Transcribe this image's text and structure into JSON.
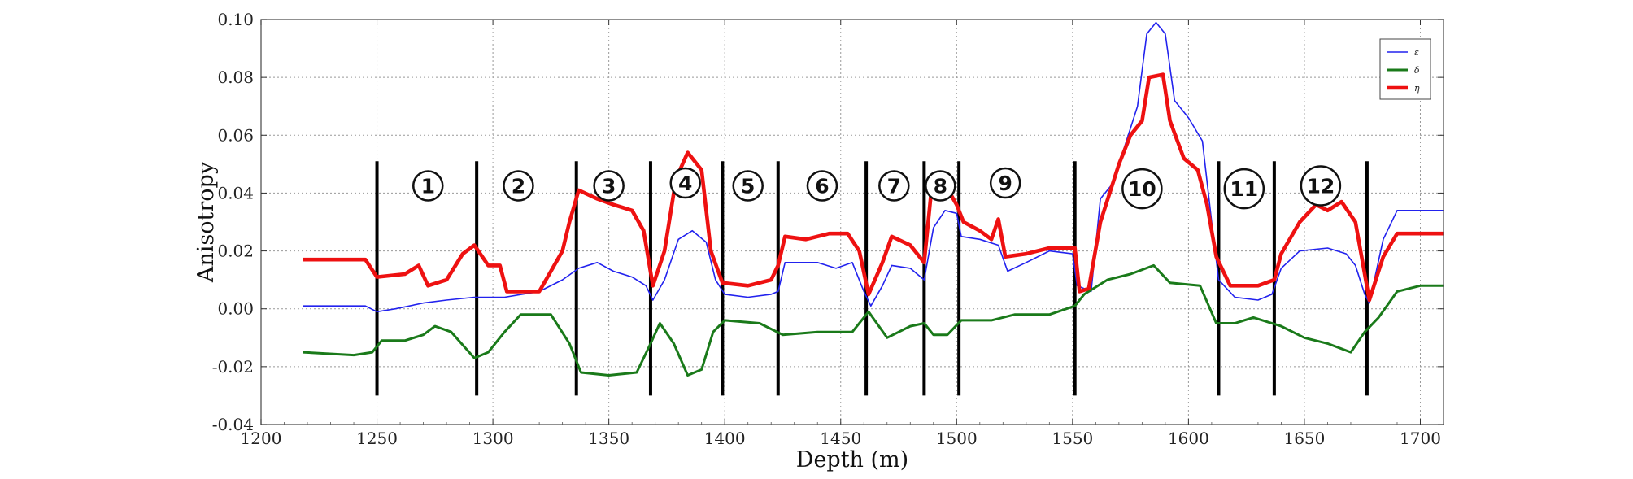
{
  "chart_data": {
    "type": "line",
    "xlabel": "Depth (m)",
    "ylabel": "Anisotropy",
    "xlim": [
      1200,
      1710
    ],
    "ylim": [
      -0.04,
      0.1
    ],
    "xticks": [
      1200,
      1250,
      1300,
      1350,
      1400,
      1450,
      1500,
      1550,
      1600,
      1650,
      1700
    ],
    "yticks": [
      -0.04,
      -0.02,
      0.0,
      0.02,
      0.04,
      0.06,
      0.08,
      0.1
    ],
    "tick_labels_x": [
      "1200",
      "1250",
      "1300",
      "1350",
      "1400",
      "1450",
      "1500",
      "1550",
      "1600",
      "1650",
      "1700"
    ],
    "tick_labels_y": [
      "-0.04",
      "-0.02",
      "0.00",
      "0.02",
      "0.04",
      "0.06",
      "0.08",
      "0.10"
    ],
    "grid": true,
    "legend_position": "top-right",
    "series": [
      {
        "name": "ε",
        "color": "#2222ee",
        "points": [
          [
            1218,
            0.001
          ],
          [
            1245,
            0.001
          ],
          [
            1250,
            -0.001
          ],
          [
            1258,
            0.0
          ],
          [
            1270,
            0.002
          ],
          [
            1280,
            0.003
          ],
          [
            1292,
            0.004
          ],
          [
            1305,
            0.004
          ],
          [
            1320,
            0.006
          ],
          [
            1330,
            0.01
          ],
          [
            1337,
            0.014
          ],
          [
            1345,
            0.016
          ],
          [
            1352,
            0.013
          ],
          [
            1360,
            0.011
          ],
          [
            1366,
            0.008
          ],
          [
            1369,
            0.003
          ],
          [
            1374,
            0.01
          ],
          [
            1380,
            0.024
          ],
          [
            1386,
            0.027
          ],
          [
            1392,
            0.023
          ],
          [
            1396,
            0.01
          ],
          [
            1400,
            0.005
          ],
          [
            1410,
            0.004
          ],
          [
            1420,
            0.005
          ],
          [
            1423,
            0.006
          ],
          [
            1426,
            0.016
          ],
          [
            1440,
            0.016
          ],
          [
            1448,
            0.014
          ],
          [
            1455,
            0.016
          ],
          [
            1460,
            0.006
          ],
          [
            1463,
            0.001
          ],
          [
            1468,
            0.008
          ],
          [
            1472,
            0.015
          ],
          [
            1480,
            0.014
          ],
          [
            1486,
            0.01
          ],
          [
            1490,
            0.028
          ],
          [
            1495,
            0.034
          ],
          [
            1500,
            0.033
          ],
          [
            1502,
            0.025
          ],
          [
            1510,
            0.024
          ],
          [
            1518,
            0.022
          ],
          [
            1522,
            0.013
          ],
          [
            1530,
            0.016
          ],
          [
            1540,
            0.02
          ],
          [
            1550,
            0.019
          ],
          [
            1552,
            0.008
          ],
          [
            1558,
            0.006
          ],
          [
            1562,
            0.038
          ],
          [
            1568,
            0.044
          ],
          [
            1572,
            0.055
          ],
          [
            1578,
            0.07
          ],
          [
            1582,
            0.095
          ],
          [
            1586,
            0.099
          ],
          [
            1590,
            0.095
          ],
          [
            1594,
            0.072
          ],
          [
            1600,
            0.066
          ],
          [
            1606,
            0.058
          ],
          [
            1610,
            0.03
          ],
          [
            1613,
            0.01
          ],
          [
            1620,
            0.004
          ],
          [
            1630,
            0.003
          ],
          [
            1636,
            0.005
          ],
          [
            1640,
            0.014
          ],
          [
            1648,
            0.02
          ],
          [
            1660,
            0.021
          ],
          [
            1668,
            0.019
          ],
          [
            1672,
            0.015
          ],
          [
            1676,
            0.005
          ],
          [
            1678,
            0.002
          ],
          [
            1684,
            0.024
          ],
          [
            1690,
            0.034
          ],
          [
            1710,
            0.034
          ]
        ]
      },
      {
        "name": "δ",
        "color": "#1a7a1a",
        "points": [
          [
            1218,
            -0.015
          ],
          [
            1240,
            -0.016
          ],
          [
            1248,
            -0.015
          ],
          [
            1252,
            -0.011
          ],
          [
            1262,
            -0.011
          ],
          [
            1270,
            -0.009
          ],
          [
            1275,
            -0.006
          ],
          [
            1282,
            -0.008
          ],
          [
            1292,
            -0.017
          ],
          [
            1298,
            -0.015
          ],
          [
            1305,
            -0.008
          ],
          [
            1312,
            -0.002
          ],
          [
            1325,
            -0.002
          ],
          [
            1333,
            -0.012
          ],
          [
            1338,
            -0.022
          ],
          [
            1350,
            -0.023
          ],
          [
            1362,
            -0.022
          ],
          [
            1368,
            -0.012
          ],
          [
            1372,
            -0.005
          ],
          [
            1378,
            -0.012
          ],
          [
            1384,
            -0.023
          ],
          [
            1390,
            -0.021
          ],
          [
            1395,
            -0.008
          ],
          [
            1400,
            -0.004
          ],
          [
            1415,
            -0.005
          ],
          [
            1425,
            -0.009
          ],
          [
            1440,
            -0.008
          ],
          [
            1455,
            -0.008
          ],
          [
            1462,
            -0.001
          ],
          [
            1470,
            -0.01
          ],
          [
            1480,
            -0.006
          ],
          [
            1486,
            -0.005
          ],
          [
            1490,
            -0.009
          ],
          [
            1496,
            -0.009
          ],
          [
            1502,
            -0.004
          ],
          [
            1515,
            -0.004
          ],
          [
            1525,
            -0.002
          ],
          [
            1540,
            -0.002
          ],
          [
            1551,
            0.001
          ],
          [
            1555,
            0.005
          ],
          [
            1565,
            0.01
          ],
          [
            1575,
            0.012
          ],
          [
            1585,
            0.015
          ],
          [
            1592,
            0.009
          ],
          [
            1605,
            0.008
          ],
          [
            1612,
            -0.005
          ],
          [
            1620,
            -0.005
          ],
          [
            1628,
            -0.003
          ],
          [
            1640,
            -0.006
          ],
          [
            1650,
            -0.01
          ],
          [
            1660,
            -0.012
          ],
          [
            1670,
            -0.015
          ],
          [
            1676,
            -0.008
          ],
          [
            1682,
            -0.003
          ],
          [
            1690,
            0.006
          ],
          [
            1700,
            0.008
          ],
          [
            1710,
            0.008
          ]
        ]
      },
      {
        "name": "η",
        "color": "#ee1111",
        "points": [
          [
            1218,
            0.017
          ],
          [
            1245,
            0.017
          ],
          [
            1250,
            0.011
          ],
          [
            1262,
            0.012
          ],
          [
            1268,
            0.015
          ],
          [
            1272,
            0.008
          ],
          [
            1280,
            0.01
          ],
          [
            1287,
            0.019
          ],
          [
            1292,
            0.022
          ],
          [
            1298,
            0.015
          ],
          [
            1303,
            0.015
          ],
          [
            1306,
            0.006
          ],
          [
            1320,
            0.006
          ],
          [
            1325,
            0.013
          ],
          [
            1330,
            0.02
          ],
          [
            1333,
            0.03
          ],
          [
            1337,
            0.041
          ],
          [
            1345,
            0.038
          ],
          [
            1352,
            0.036
          ],
          [
            1360,
            0.034
          ],
          [
            1365,
            0.027
          ],
          [
            1369,
            0.008
          ],
          [
            1374,
            0.02
          ],
          [
            1379,
            0.045
          ],
          [
            1384,
            0.054
          ],
          [
            1390,
            0.048
          ],
          [
            1394,
            0.02
          ],
          [
            1399,
            0.009
          ],
          [
            1410,
            0.008
          ],
          [
            1420,
            0.01
          ],
          [
            1423,
            0.015
          ],
          [
            1426,
            0.025
          ],
          [
            1435,
            0.024
          ],
          [
            1445,
            0.026
          ],
          [
            1453,
            0.026
          ],
          [
            1458,
            0.02
          ],
          [
            1462,
            0.005
          ],
          [
            1468,
            0.016
          ],
          [
            1472,
            0.025
          ],
          [
            1480,
            0.022
          ],
          [
            1486,
            0.016
          ],
          [
            1489,
            0.04
          ],
          [
            1495,
            0.043
          ],
          [
            1500,
            0.036
          ],
          [
            1503,
            0.03
          ],
          [
            1510,
            0.027
          ],
          [
            1515,
            0.024
          ],
          [
            1518,
            0.031
          ],
          [
            1521,
            0.018
          ],
          [
            1530,
            0.019
          ],
          [
            1540,
            0.021
          ],
          [
            1551,
            0.021
          ],
          [
            1553,
            0.006
          ],
          [
            1557,
            0.007
          ],
          [
            1562,
            0.03
          ],
          [
            1566,
            0.04
          ],
          [
            1570,
            0.05
          ],
          [
            1575,
            0.06
          ],
          [
            1580,
            0.065
          ],
          [
            1583,
            0.08
          ],
          [
            1589,
            0.081
          ],
          [
            1592,
            0.065
          ],
          [
            1598,
            0.052
          ],
          [
            1604,
            0.048
          ],
          [
            1608,
            0.036
          ],
          [
            1612,
            0.018
          ],
          [
            1618,
            0.008
          ],
          [
            1630,
            0.008
          ],
          [
            1637,
            0.01
          ],
          [
            1640,
            0.019
          ],
          [
            1648,
            0.03
          ],
          [
            1655,
            0.036
          ],
          [
            1660,
            0.034
          ],
          [
            1666,
            0.037
          ],
          [
            1672,
            0.03
          ],
          [
            1676,
            0.012
          ],
          [
            1678,
            0.003
          ],
          [
            1684,
            0.018
          ],
          [
            1690,
            0.026
          ],
          [
            1710,
            0.026
          ]
        ]
      }
    ],
    "zones": {
      "boundaries": [
        1250,
        1293,
        1336,
        1368,
        1399,
        1423,
        1461,
        1486,
        1501,
        1551,
        1613,
        1637,
        1677
      ],
      "boundary_range": [
        -0.03,
        0.051
      ],
      "labels": [
        {
          "text": "1",
          "x": 1272,
          "y": 0.0425,
          "size": "small"
        },
        {
          "text": "2",
          "x": 1311,
          "y": 0.0425,
          "size": "small"
        },
        {
          "text": "3",
          "x": 1350,
          "y": 0.0425,
          "size": "small"
        },
        {
          "text": "4",
          "x": 1383,
          "y": 0.0435,
          "size": "small"
        },
        {
          "text": "5",
          "x": 1410,
          "y": 0.0425,
          "size": "small"
        },
        {
          "text": "6",
          "x": 1442,
          "y": 0.0425,
          "size": "small"
        },
        {
          "text": "7",
          "x": 1473,
          "y": 0.0425,
          "size": "small"
        },
        {
          "text": "8",
          "x": 1493,
          "y": 0.0425,
          "size": "small"
        },
        {
          "text": "9",
          "x": 1521,
          "y": 0.0435,
          "size": "small"
        },
        {
          "text": "10",
          "x": 1580,
          "y": 0.0415,
          "size": "large"
        },
        {
          "text": "11",
          "x": 1624,
          "y": 0.0415,
          "size": "large"
        },
        {
          "text": "12",
          "x": 1657,
          "y": 0.0425,
          "size": "large"
        }
      ]
    }
  }
}
